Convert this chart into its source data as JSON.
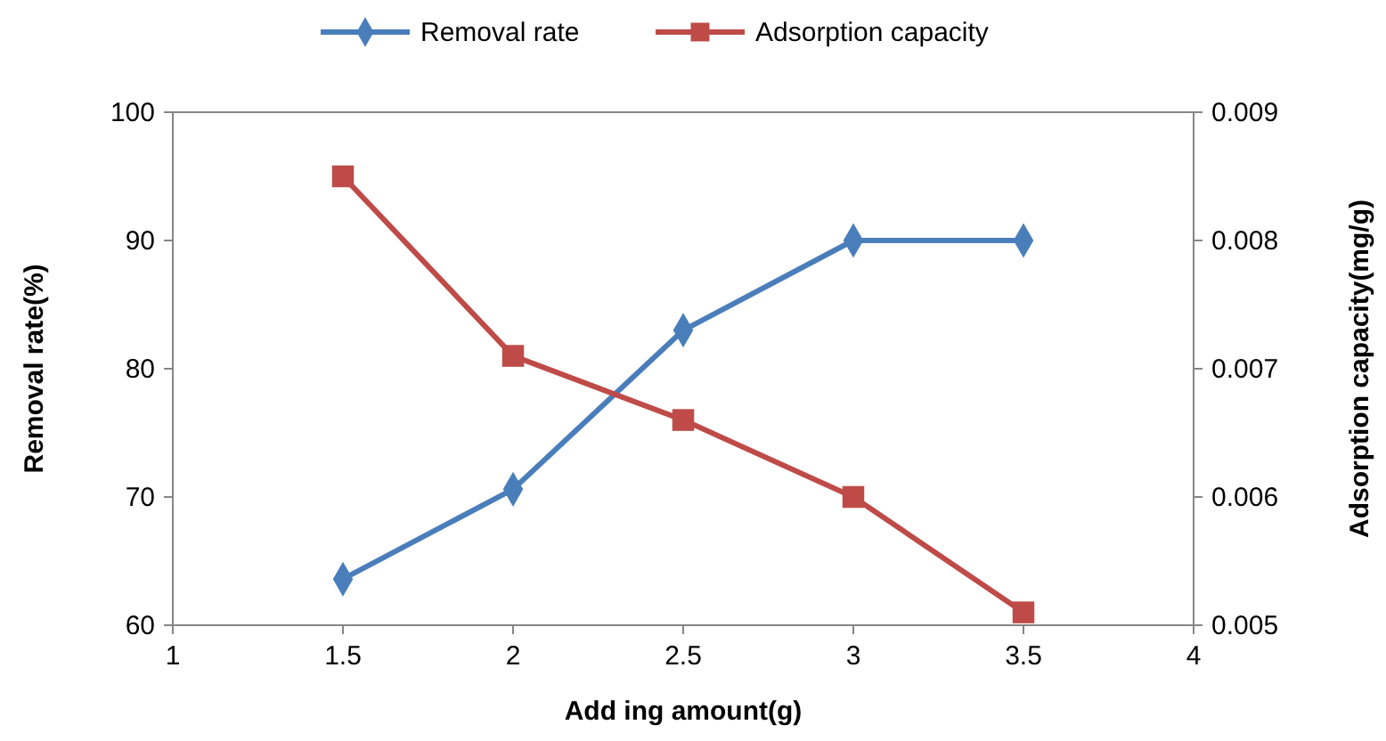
{
  "chart_data": {
    "type": "line",
    "xlabel": "Add ing amount(g)",
    "ylabel": "Removal rate(%)",
    "y2label": "Adsorption capacity(mg/g)",
    "x": [
      1.5,
      2,
      2.5,
      3,
      3.5
    ],
    "xlim": [
      1,
      4
    ],
    "xticks": [
      1,
      1.5,
      2,
      2.5,
      3,
      3.5,
      4
    ],
    "ylim": [
      60,
      100
    ],
    "yticks": [
      60,
      70,
      80,
      90,
      100
    ],
    "y2lim": [
      0.005,
      0.009
    ],
    "y2ticks": [
      0.005,
      0.006,
      0.007,
      0.008,
      0.009
    ],
    "legend": "top",
    "grid": false,
    "series": [
      {
        "name": "Removal rate",
        "color": "#4a7ebb",
        "marker": "diamond",
        "values": [
          63.6,
          70.6,
          83,
          90,
          90
        ]
      },
      {
        "name": "Adsorption capacity",
        "color": "#be4b48",
        "marker": "square",
        "axis": "y2",
        "values": [
          0.0085,
          0.0071,
          0.0066,
          0.006,
          0.0051
        ]
      }
    ]
  }
}
